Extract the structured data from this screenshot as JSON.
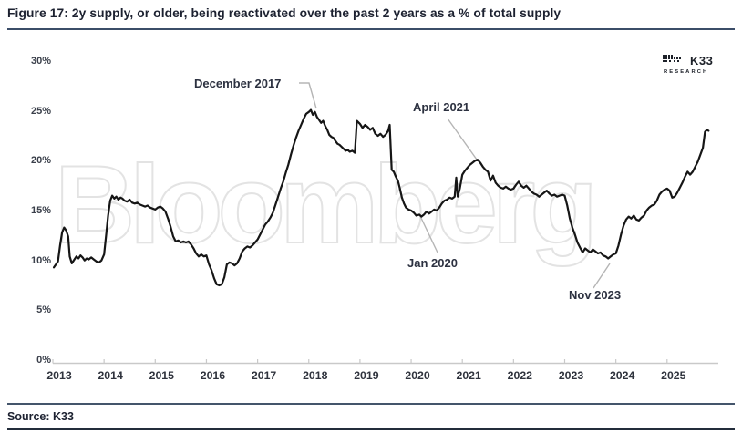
{
  "figure": {
    "title": "Figure 17: 2y supply, or older, being reactivated over the past 2 years as a % of total supply",
    "source": "Source: K33",
    "watermark": "Bloomberg",
    "logo": {
      "name": "K33",
      "subtext": "RESEARCH"
    }
  },
  "colors": {
    "line": "#161616",
    "divider": "#3b4d68",
    "watermark_outline": "#e3e3e3",
    "leader_line": "#b5b5b5",
    "axis": "#c9c9c9"
  },
  "chart_data": {
    "type": "line",
    "title": "2y supply, or older, being reactivated over the past 2 years as a % of total supply",
    "xlabel": "",
    "ylabel": "",
    "x_ticks": [
      "2013",
      "2014",
      "2015",
      "2016",
      "2017",
      "2018",
      "2019",
      "2020",
      "2021",
      "2022",
      "2023",
      "2024",
      "2025"
    ],
    "y_ticks": [
      "30%",
      "25%",
      "20%",
      "15%",
      "10%",
      "5%",
      "0%"
    ],
    "ylim": [
      0,
      30
    ],
    "xlim": [
      2013,
      2026
    ],
    "grid": false,
    "legend_position": "none",
    "annotations": [
      {
        "label": "December 2017",
        "x": 2018.04,
        "y": 25.1
      },
      {
        "label": "April 2021",
        "x": 2021.3,
        "y": 20.1
      },
      {
        "label": "Jan 2020",
        "x": 2020.16,
        "y": 14.6
      },
      {
        "label": "Nov 2023",
        "x": 2023.85,
        "y": 10.2
      }
    ],
    "series": [
      {
        "name": "2y+ old supply reactivated (% of total supply)",
        "color": "#161616",
        "points": [
          [
            2013.02,
            9.3
          ],
          [
            2013.06,
            9.6
          ],
          [
            2013.1,
            9.9
          ],
          [
            2013.14,
            11.5
          ],
          [
            2013.18,
            12.8
          ],
          [
            2013.22,
            13.3
          ],
          [
            2013.26,
            13.0
          ],
          [
            2013.3,
            12.4
          ],
          [
            2013.33,
            10.4
          ],
          [
            2013.37,
            9.7
          ],
          [
            2013.42,
            10.1
          ],
          [
            2013.46,
            10.4
          ],
          [
            2013.5,
            10.2
          ],
          [
            2013.54,
            10.5
          ],
          [
            2013.58,
            10.3
          ],
          [
            2013.62,
            10.0
          ],
          [
            2013.66,
            10.2
          ],
          [
            2013.7,
            10.1
          ],
          [
            2013.75,
            10.3
          ],
          [
            2013.8,
            10.1
          ],
          [
            2013.85,
            9.9
          ],
          [
            2013.9,
            9.8
          ],
          [
            2013.95,
            10.0
          ],
          [
            2014.0,
            10.6
          ],
          [
            2014.04,
            12.5
          ],
          [
            2014.08,
            14.5
          ],
          [
            2014.12,
            16.0
          ],
          [
            2014.16,
            16.5
          ],
          [
            2014.2,
            16.2
          ],
          [
            2014.24,
            16.4
          ],
          [
            2014.28,
            16.1
          ],
          [
            2014.32,
            16.3
          ],
          [
            2014.36,
            16.2
          ],
          [
            2014.4,
            16.0
          ],
          [
            2014.45,
            15.9
          ],
          [
            2014.5,
            16.1
          ],
          [
            2014.55,
            15.8
          ],
          [
            2014.6,
            15.7
          ],
          [
            2014.65,
            15.8
          ],
          [
            2014.7,
            15.6
          ],
          [
            2014.75,
            15.5
          ],
          [
            2014.8,
            15.4
          ],
          [
            2014.85,
            15.5
          ],
          [
            2014.9,
            15.3
          ],
          [
            2014.95,
            15.2
          ],
          [
            2015.0,
            15.1
          ],
          [
            2015.05,
            15.3
          ],
          [
            2015.1,
            15.4
          ],
          [
            2015.15,
            15.2
          ],
          [
            2015.2,
            14.9
          ],
          [
            2015.25,
            14.2
          ],
          [
            2015.3,
            13.4
          ],
          [
            2015.35,
            12.4
          ],
          [
            2015.4,
            11.9
          ],
          [
            2015.45,
            12.0
          ],
          [
            2015.5,
            11.8
          ],
          [
            2015.55,
            11.9
          ],
          [
            2015.6,
            11.8
          ],
          [
            2015.65,
            11.9
          ],
          [
            2015.7,
            11.6
          ],
          [
            2015.75,
            11.2
          ],
          [
            2015.8,
            10.7
          ],
          [
            2015.85,
            10.4
          ],
          [
            2015.9,
            10.6
          ],
          [
            2015.95,
            10.4
          ],
          [
            2016.0,
            10.5
          ],
          [
            2016.05,
            9.6
          ],
          [
            2016.1,
            9.0
          ],
          [
            2016.15,
            8.2
          ],
          [
            2016.2,
            7.6
          ],
          [
            2016.25,
            7.5
          ],
          [
            2016.3,
            7.6
          ],
          [
            2016.35,
            8.3
          ],
          [
            2016.4,
            9.6
          ],
          [
            2016.45,
            9.8
          ],
          [
            2016.5,
            9.7
          ],
          [
            2016.55,
            9.5
          ],
          [
            2016.6,
            9.7
          ],
          [
            2016.65,
            10.2
          ],
          [
            2016.7,
            10.9
          ],
          [
            2016.75,
            11.2
          ],
          [
            2016.8,
            11.4
          ],
          [
            2016.85,
            11.3
          ],
          [
            2016.9,
            11.5
          ],
          [
            2016.95,
            11.8
          ],
          [
            2017.0,
            12.1
          ],
          [
            2017.05,
            12.6
          ],
          [
            2017.1,
            13.1
          ],
          [
            2017.15,
            13.6
          ],
          [
            2017.2,
            13.9
          ],
          [
            2017.25,
            14.3
          ],
          [
            2017.3,
            14.8
          ],
          [
            2017.35,
            15.6
          ],
          [
            2017.4,
            16.4
          ],
          [
            2017.45,
            17.2
          ],
          [
            2017.5,
            17.9
          ],
          [
            2017.55,
            18.8
          ],
          [
            2017.6,
            19.6
          ],
          [
            2017.65,
            20.6
          ],
          [
            2017.7,
            21.5
          ],
          [
            2017.75,
            22.3
          ],
          [
            2017.8,
            23.0
          ],
          [
            2017.85,
            23.6
          ],
          [
            2017.9,
            24.2
          ],
          [
            2017.95,
            24.7
          ],
          [
            2018.0,
            24.9
          ],
          [
            2018.04,
            25.1
          ],
          [
            2018.08,
            24.6
          ],
          [
            2018.12,
            24.9
          ],
          [
            2018.16,
            24.4
          ],
          [
            2018.2,
            24.1
          ],
          [
            2018.24,
            23.8
          ],
          [
            2018.28,
            24.0
          ],
          [
            2018.32,
            23.5
          ],
          [
            2018.36,
            23.1
          ],
          [
            2018.4,
            22.6
          ],
          [
            2018.44,
            22.4
          ],
          [
            2018.48,
            22.3
          ],
          [
            2018.52,
            22.0
          ],
          [
            2018.56,
            21.7
          ],
          [
            2018.6,
            21.6
          ],
          [
            2018.64,
            21.4
          ],
          [
            2018.68,
            21.2
          ],
          [
            2018.72,
            21.0
          ],
          [
            2018.76,
            21.1
          ],
          [
            2018.8,
            20.9
          ],
          [
            2018.85,
            21.0
          ],
          [
            2018.9,
            20.8
          ],
          [
            2018.94,
            24.0
          ],
          [
            2019.0,
            23.7
          ],
          [
            2019.05,
            23.3
          ],
          [
            2019.1,
            23.6
          ],
          [
            2019.15,
            23.4
          ],
          [
            2019.2,
            23.1
          ],
          [
            2019.25,
            23.3
          ],
          [
            2019.3,
            22.7
          ],
          [
            2019.35,
            22.5
          ],
          [
            2019.4,
            22.7
          ],
          [
            2019.45,
            22.4
          ],
          [
            2019.5,
            22.6
          ],
          [
            2019.55,
            23.0
          ],
          [
            2019.58,
            23.6
          ],
          [
            2019.62,
            19.1
          ],
          [
            2019.66,
            18.9
          ],
          [
            2019.7,
            18.4
          ],
          [
            2019.74,
            18.0
          ],
          [
            2019.78,
            17.2
          ],
          [
            2019.82,
            16.3
          ],
          [
            2019.86,
            15.7
          ],
          [
            2019.9,
            15.3
          ],
          [
            2019.95,
            15.1
          ],
          [
            2020.0,
            15.0
          ],
          [
            2020.05,
            14.8
          ],
          [
            2020.1,
            14.5
          ],
          [
            2020.16,
            14.6
          ],
          [
            2020.2,
            14.4
          ],
          [
            2020.25,
            14.6
          ],
          [
            2020.3,
            14.9
          ],
          [
            2020.35,
            14.7
          ],
          [
            2020.4,
            14.9
          ],
          [
            2020.45,
            15.1
          ],
          [
            2020.5,
            15.0
          ],
          [
            2020.55,
            15.3
          ],
          [
            2020.6,
            15.7
          ],
          [
            2020.65,
            16.0
          ],
          [
            2020.7,
            16.1
          ],
          [
            2020.75,
            16.3
          ],
          [
            2020.8,
            16.2
          ],
          [
            2020.85,
            16.4
          ],
          [
            2020.88,
            18.3
          ],
          [
            2020.91,
            16.4
          ],
          [
            2020.95,
            17.2
          ],
          [
            2021.0,
            18.6
          ],
          [
            2021.05,
            19.0
          ],
          [
            2021.1,
            19.3
          ],
          [
            2021.15,
            19.6
          ],
          [
            2021.2,
            19.8
          ],
          [
            2021.25,
            20.0
          ],
          [
            2021.3,
            20.1
          ],
          [
            2021.35,
            19.8
          ],
          [
            2021.4,
            19.4
          ],
          [
            2021.45,
            19.1
          ],
          [
            2021.5,
            18.9
          ],
          [
            2021.55,
            18.0
          ],
          [
            2021.6,
            18.5
          ],
          [
            2021.65,
            17.8
          ],
          [
            2021.7,
            17.5
          ],
          [
            2021.75,
            17.3
          ],
          [
            2021.8,
            17.2
          ],
          [
            2021.85,
            17.4
          ],
          [
            2021.9,
            17.2
          ],
          [
            2021.95,
            17.1
          ],
          [
            2022.0,
            17.2
          ],
          [
            2022.05,
            17.6
          ],
          [
            2022.1,
            17.9
          ],
          [
            2022.15,
            17.5
          ],
          [
            2022.2,
            17.3
          ],
          [
            2022.25,
            17.5
          ],
          [
            2022.3,
            17.2
          ],
          [
            2022.35,
            16.9
          ],
          [
            2022.4,
            16.7
          ],
          [
            2022.45,
            16.6
          ],
          [
            2022.5,
            16.4
          ],
          [
            2022.55,
            16.6
          ],
          [
            2022.6,
            16.8
          ],
          [
            2022.65,
            17.0
          ],
          [
            2022.7,
            16.7
          ],
          [
            2022.75,
            16.5
          ],
          [
            2022.8,
            16.6
          ],
          [
            2022.85,
            16.4
          ],
          [
            2022.9,
            16.5
          ],
          [
            2022.95,
            16.6
          ],
          [
            2023.0,
            16.5
          ],
          [
            2023.05,
            15.5
          ],
          [
            2023.1,
            14.2
          ],
          [
            2023.15,
            13.3
          ],
          [
            2023.2,
            12.6
          ],
          [
            2023.25,
            11.8
          ],
          [
            2023.3,
            11.3
          ],
          [
            2023.35,
            10.8
          ],
          [
            2023.4,
            11.2
          ],
          [
            2023.45,
            11.0
          ],
          [
            2023.5,
            10.8
          ],
          [
            2023.55,
            11.1
          ],
          [
            2023.6,
            10.9
          ],
          [
            2023.65,
            10.7
          ],
          [
            2023.7,
            10.8
          ],
          [
            2023.75,
            10.5
          ],
          [
            2023.8,
            10.4
          ],
          [
            2023.85,
            10.2
          ],
          [
            2023.9,
            10.4
          ],
          [
            2023.95,
            10.6
          ],
          [
            2024.0,
            10.7
          ],
          [
            2024.05,
            11.5
          ],
          [
            2024.1,
            12.6
          ],
          [
            2024.15,
            13.5
          ],
          [
            2024.2,
            14.1
          ],
          [
            2024.25,
            14.4
          ],
          [
            2024.3,
            14.2
          ],
          [
            2024.35,
            14.5
          ],
          [
            2024.4,
            14.1
          ],
          [
            2024.45,
            14.0
          ],
          [
            2024.5,
            14.3
          ],
          [
            2024.55,
            14.5
          ],
          [
            2024.6,
            15.0
          ],
          [
            2024.65,
            15.3
          ],
          [
            2024.7,
            15.5
          ],
          [
            2024.75,
            15.6
          ],
          [
            2024.8,
            16.0
          ],
          [
            2024.85,
            16.6
          ],
          [
            2024.9,
            16.9
          ],
          [
            2024.95,
            17.1
          ],
          [
            2025.0,
            17.2
          ],
          [
            2025.05,
            17.0
          ],
          [
            2025.1,
            16.3
          ],
          [
            2025.15,
            16.4
          ],
          [
            2025.2,
            16.8
          ],
          [
            2025.25,
            17.3
          ],
          [
            2025.3,
            17.8
          ],
          [
            2025.35,
            18.4
          ],
          [
            2025.4,
            18.9
          ],
          [
            2025.45,
            18.6
          ],
          [
            2025.5,
            18.9
          ],
          [
            2025.55,
            19.4
          ],
          [
            2025.6,
            19.9
          ],
          [
            2025.65,
            20.6
          ],
          [
            2025.7,
            21.3
          ],
          [
            2025.74,
            22.9
          ],
          [
            2025.78,
            23.1
          ],
          [
            2025.81,
            23.0
          ]
        ]
      }
    ]
  }
}
